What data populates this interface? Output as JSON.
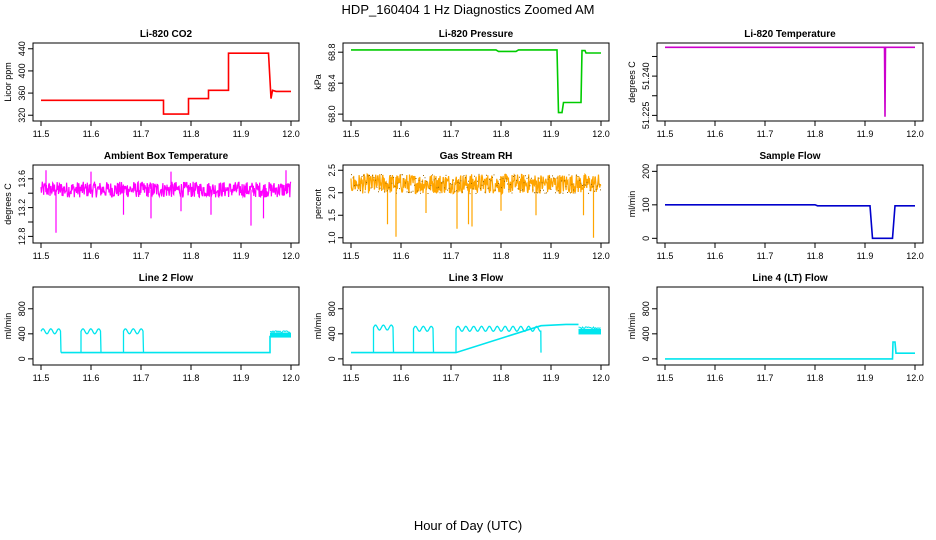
{
  "page": {
    "title": "HDP_160404  1 Hz Diagnostics Zoomed AM",
    "xlabel": "Hour of Day (UTC)"
  },
  "chart_data": [
    {
      "type": "line",
      "title": "Li-820 CO2",
      "ylabel": "Licor ppm",
      "color": "#ff0000",
      "xlim": [
        11.5,
        12.0
      ],
      "ylim": [
        315,
        445
      ],
      "yticks": [
        320,
        360,
        400,
        440
      ],
      "ytick_labels": [
        "320",
        "360",
        "400",
        "440"
      ],
      "x": [
        11.5,
        11.745,
        11.745,
        11.795,
        11.795,
        11.835,
        11.835,
        11.875,
        11.875,
        11.955,
        11.96,
        11.963,
        11.97,
        12.0
      ],
      "y": [
        347,
        347,
        322,
        322,
        350,
        350,
        365,
        365,
        432,
        432,
        350,
        365,
        363,
        363
      ]
    },
    {
      "type": "line",
      "title": "Li-820 Pressure",
      "ylabel": "kPa",
      "color": "#00cc00",
      "xlim": [
        11.5,
        12.0
      ],
      "ylim": [
        67.95,
        68.88
      ],
      "yticks": [
        68.0,
        68.4,
        68.8
      ],
      "ytick_labels": [
        "68.0",
        "68.4",
        "68.8"
      ],
      "x": [
        11.5,
        11.79,
        11.795,
        11.83,
        11.835,
        11.912,
        11.915,
        11.922,
        11.925,
        11.96,
        11.962,
        11.968,
        11.97,
        12.0
      ],
      "y": [
        68.83,
        68.83,
        68.81,
        68.81,
        68.83,
        68.83,
        68.02,
        68.02,
        68.15,
        68.15,
        68.82,
        68.82,
        68.79,
        68.79
      ]
    },
    {
      "type": "line",
      "title": "Li-820 Temperature",
      "ylabel": "degrees C",
      "color": "#cc00cc",
      "xlim": [
        11.5,
        12.0
      ],
      "ylim": [
        51.224,
        51.2515
      ],
      "yticks": [
        51.225,
        51.24
      ],
      "ytick_labels": [
        "51.225",
        "51.240"
      ],
      "minor_yticks": [
        51.2325,
        51.2475
      ],
      "x": [
        11.5,
        11.939,
        11.94,
        11.941,
        12.0
      ],
      "y": [
        51.251,
        51.251,
        51.2245,
        51.251,
        51.251
      ]
    },
    {
      "type": "line",
      "title": "Ambient Box Temperature",
      "ylabel": "degrees C",
      "color": "#ff00ff",
      "xlim": [
        11.5,
        12.0
      ],
      "ylim": [
        12.75,
        13.75
      ],
      "yticks": [
        12.8,
        13.2,
        13.6
      ],
      "ytick_labels": [
        "12.8",
        "13.2",
        "13.6"
      ],
      "minor_yticks": [
        13.0,
        13.4
      ],
      "noise": {
        "base": 13.45,
        "spread": 0.11,
        "spikes_down": [
          [
            11.53,
            12.85
          ],
          [
            11.665,
            13.1
          ],
          [
            11.72,
            13.05
          ],
          [
            11.78,
            13.15
          ],
          [
            11.84,
            13.1
          ],
          [
            11.92,
            12.95
          ],
          [
            11.945,
            13.05
          ]
        ],
        "spikes_up": [
          [
            11.51,
            13.72
          ],
          [
            11.6,
            13.7
          ],
          [
            11.76,
            13.7
          ],
          [
            11.99,
            13.72
          ]
        ]
      }
    },
    {
      "type": "line",
      "title": "Gas Stream RH",
      "ylabel": "percent",
      "color": "#ffa500",
      "marker_color": "#996600",
      "xlim": [
        11.5,
        12.0
      ],
      "ylim": [
        0.95,
        2.55
      ],
      "yticks": [
        1.0,
        1.5,
        2.0,
        2.5
      ],
      "ytick_labels": [
        "1.0",
        "1.5",
        "2.0",
        "2.5"
      ],
      "noise": {
        "base": 2.2,
        "spread": 0.22,
        "spikes_down": [
          [
            11.573,
            1.3
          ],
          [
            11.59,
            1.02
          ],
          [
            11.65,
            1.55
          ],
          [
            11.712,
            1.2
          ],
          [
            11.735,
            1.3
          ],
          [
            11.742,
            1.25
          ],
          [
            11.8,
            1.6
          ],
          [
            11.87,
            1.5
          ],
          [
            11.965,
            1.5
          ],
          [
            11.985,
            1.0
          ]
        ]
      }
    },
    {
      "type": "line",
      "title": "Sample Flow",
      "ylabel": "ml/min",
      "color": "#0000cc",
      "xlim": [
        11.5,
        12.0
      ],
      "ylim": [
        -5,
        210
      ],
      "yticks": [
        0,
        100,
        200
      ],
      "ytick_labels": [
        "0",
        "100",
        "200"
      ],
      "x": [
        11.5,
        11.8,
        11.805,
        11.91,
        11.915,
        11.955,
        11.96,
        12.0
      ],
      "y": [
        100,
        100,
        97,
        97,
        0,
        0,
        97,
        97
      ]
    },
    {
      "type": "line",
      "title": "Line 2 Flow",
      "ylabel": "ml/min",
      "color": "#00e5ee",
      "xlim": [
        11.5,
        12.0
      ],
      "ylim": [
        -50,
        1100
      ],
      "yticks": [
        0,
        400,
        800
      ],
      "ytick_labels": [
        "0",
        "400",
        "800"
      ],
      "wavy_segments": [
        [
          11.5,
          11.54,
          440,
          40
        ],
        [
          11.58,
          11.62,
          440,
          40
        ],
        [
          11.665,
          11.705,
          440,
          40
        ]
      ],
      "x": [
        11.54,
        11.58,
        11.62,
        11.665,
        11.705,
        11.958,
        11.958
      ],
      "y": [
        100,
        100,
        100,
        100,
        100,
        100,
        370
      ],
      "band": [
        11.958,
        12.0,
        340,
        420
      ]
    },
    {
      "type": "line",
      "title": "Line 3 Flow",
      "ylabel": "ml/min",
      "color": "#00e5ee",
      "xlim": [
        11.5,
        12.0
      ],
      "ylim": [
        -50,
        1100
      ],
      "yticks": [
        0,
        400,
        800
      ],
      "ytick_labels": [
        "0",
        "400",
        "800"
      ],
      "wavy_segments": [
        [
          11.545,
          11.585,
          500,
          40
        ],
        [
          11.625,
          11.665,
          480,
          40
        ],
        [
          11.71,
          11.88,
          480,
          40
        ]
      ],
      "x": [
        11.5,
        11.545,
        11.585,
        11.625,
        11.665,
        11.71,
        11.88,
        11.93,
        11.955
      ],
      "y": [
        100,
        100,
        100,
        100,
        100,
        100,
        530,
        550,
        550
      ],
      "band": [
        11.955,
        12.0,
        390,
        480
      ]
    },
    {
      "type": "line",
      "title": "Line 4 (LT) Flow",
      "ylabel": "ml/min",
      "color": "#00e5ee",
      "xlim": [
        11.5,
        12.0
      ],
      "ylim": [
        -50,
        1100
      ],
      "yticks": [
        0,
        400,
        800
      ],
      "ytick_labels": [
        "0",
        "400",
        "800"
      ],
      "x": [
        11.5,
        11.955,
        11.956,
        11.96,
        11.962,
        12.0
      ],
      "y": [
        0,
        0,
        270,
        270,
        90,
        90
      ]
    }
  ]
}
